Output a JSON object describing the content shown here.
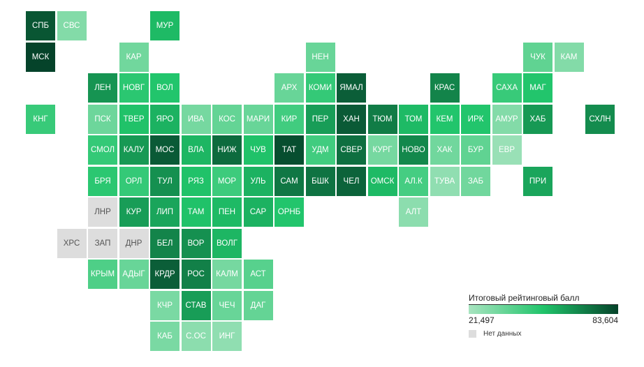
{
  "map": {
    "color_scale": {
      "min_color": "#a8e4c0",
      "max_color": "#05432a",
      "nodata_color": "#dddddd"
    },
    "regions": [
      {
        "label": "СПБ",
        "row": 0,
        "col": 0,
        "score": 79
      },
      {
        "label": "СВС",
        "row": 0,
        "col": 1,
        "score": 30
      },
      {
        "label": "МУР",
        "row": 0,
        "col": 4,
        "score": 55
      },
      {
        "label": "МСК",
        "row": 1,
        "col": 0,
        "score": 83.6
      },
      {
        "label": "КАР",
        "row": 1,
        "col": 3,
        "score": 34
      },
      {
        "label": "НЕН",
        "row": 1,
        "col": 9,
        "score": 36
      },
      {
        "label": "ЧУК",
        "row": 1,
        "col": 16,
        "score": 38
      },
      {
        "label": "КАМ",
        "row": 1,
        "col": 17,
        "score": 30
      },
      {
        "label": "ЛЕН",
        "row": 2,
        "col": 2,
        "score": 64
      },
      {
        "label": "НОВГ",
        "row": 2,
        "col": 3,
        "score": 50
      },
      {
        "label": "ВОЛ",
        "row": 2,
        "col": 4,
        "score": 52
      },
      {
        "label": "АРХ",
        "row": 2,
        "col": 8,
        "score": 36
      },
      {
        "label": "КОМИ",
        "row": 2,
        "col": 9,
        "score": 48
      },
      {
        "label": "ЯМАЛ",
        "row": 2,
        "col": 10,
        "score": 77
      },
      {
        "label": "КРАС",
        "row": 2,
        "col": 13,
        "score": 68
      },
      {
        "label": "САХА",
        "row": 2,
        "col": 15,
        "score": 47
      },
      {
        "label": "МАГ",
        "row": 2,
        "col": 16,
        "score": 52
      },
      {
        "label": "КНГ",
        "row": 3,
        "col": 0,
        "score": 47
      },
      {
        "label": "ПСК",
        "row": 3,
        "col": 2,
        "score": 35
      },
      {
        "label": "ТВЕР",
        "row": 3,
        "col": 3,
        "score": 53
      },
      {
        "label": "ЯРО",
        "row": 3,
        "col": 4,
        "score": 57
      },
      {
        "label": "ИВА",
        "row": 3,
        "col": 5,
        "score": 33
      },
      {
        "label": "КОС",
        "row": 3,
        "col": 6,
        "score": 37
      },
      {
        "label": "МАРИ",
        "row": 3,
        "col": 7,
        "score": 36
      },
      {
        "label": "КИР",
        "row": 3,
        "col": 8,
        "score": 45
      },
      {
        "label": "ПЕР",
        "row": 3,
        "col": 9,
        "score": 62
      },
      {
        "label": "ХАН",
        "row": 3,
        "col": 10,
        "score": 78
      },
      {
        "label": "ТЮМ",
        "row": 3,
        "col": 11,
        "score": 70
      },
      {
        "label": "ТОМ",
        "row": 3,
        "col": 12,
        "score": 55
      },
      {
        "label": "КЕМ",
        "row": 3,
        "col": 13,
        "score": 52
      },
      {
        "label": "ИРК",
        "row": 3,
        "col": 14,
        "score": 52
      },
      {
        "label": "АМУР",
        "row": 3,
        "col": 15,
        "score": 30
      },
      {
        "label": "ХАБ",
        "row": 3,
        "col": 16,
        "score": 63
      },
      {
        "label": "СХЛН",
        "row": 3,
        "col": 18,
        "score": 66
      },
      {
        "label": "СМОЛ",
        "row": 4,
        "col": 2,
        "score": 48
      },
      {
        "label": "КАЛУ",
        "row": 4,
        "col": 3,
        "score": 63
      },
      {
        "label": "МОС",
        "row": 4,
        "col": 4,
        "score": 78
      },
      {
        "label": "ВЛА",
        "row": 4,
        "col": 5,
        "score": 56
      },
      {
        "label": "НИЖ",
        "row": 4,
        "col": 6,
        "score": 74
      },
      {
        "label": "ЧУВ",
        "row": 4,
        "col": 7,
        "score": 53
      },
      {
        "label": "ТАТ",
        "row": 4,
        "col": 8,
        "score": 81
      },
      {
        "label": "УДМ",
        "row": 4,
        "col": 9,
        "score": 45
      },
      {
        "label": "СВЕР",
        "row": 4,
        "col": 10,
        "score": 73
      },
      {
        "label": "КУРГ",
        "row": 4,
        "col": 11,
        "score": 33
      },
      {
        "label": "НОВО",
        "row": 4,
        "col": 12,
        "score": 67
      },
      {
        "label": "ХАК",
        "row": 4,
        "col": 13,
        "score": 34
      },
      {
        "label": "БУР",
        "row": 4,
        "col": 14,
        "score": 38
      },
      {
        "label": "ЕВР",
        "row": 4,
        "col": 15,
        "score": 25
      },
      {
        "label": "БРЯ",
        "row": 5,
        "col": 2,
        "score": 50
      },
      {
        "label": "ОРЛ",
        "row": 5,
        "col": 3,
        "score": 48
      },
      {
        "label": "ТУЛ",
        "row": 5,
        "col": 4,
        "score": 65
      },
      {
        "label": "РЯЗ",
        "row": 5,
        "col": 5,
        "score": 53
      },
      {
        "label": "МОР",
        "row": 5,
        "col": 6,
        "score": 46
      },
      {
        "label": "УЛЬ",
        "row": 5,
        "col": 7,
        "score": 57
      },
      {
        "label": "САМ",
        "row": 5,
        "col": 8,
        "score": 71
      },
      {
        "label": "БШК",
        "row": 5,
        "col": 9,
        "score": 72
      },
      {
        "label": "ЧЕЛ",
        "row": 5,
        "col": 10,
        "score": 76
      },
      {
        "label": "ОМСК",
        "row": 5,
        "col": 11,
        "score": 55
      },
      {
        "label": "АЛ.К",
        "row": 5,
        "col": 12,
        "score": 44
      },
      {
        "label": "ТУВА",
        "row": 5,
        "col": 13,
        "score": 27
      },
      {
        "label": "ЗАБ",
        "row": 5,
        "col": 14,
        "score": 34
      },
      {
        "label": "ПРИ",
        "row": 5,
        "col": 16,
        "score": 60
      },
      {
        "label": "ЛНР",
        "row": 6,
        "col": 2,
        "score": null
      },
      {
        "label": "КУР",
        "row": 6,
        "col": 3,
        "score": 62
      },
      {
        "label": "ЛИП",
        "row": 6,
        "col": 4,
        "score": 60
      },
      {
        "label": "ТАМ",
        "row": 6,
        "col": 5,
        "score": 53
      },
      {
        "label": "ПЕН",
        "row": 6,
        "col": 6,
        "score": 55
      },
      {
        "label": "САР",
        "row": 6,
        "col": 7,
        "score": 57
      },
      {
        "label": "ОРНБ",
        "row": 6,
        "col": 8,
        "score": 52
      },
      {
        "label": "АЛТ",
        "row": 6,
        "col": 12,
        "score": 28
      },
      {
        "label": "ХРС",
        "row": 7,
        "col": 1,
        "score": null
      },
      {
        "label": "ЗАП",
        "row": 7,
        "col": 2,
        "score": null
      },
      {
        "label": "ДНР",
        "row": 7,
        "col": 3,
        "score": null
      },
      {
        "label": "БЕЛ",
        "row": 7,
        "col": 4,
        "score": 68
      },
      {
        "label": "ВОР",
        "row": 7,
        "col": 5,
        "score": 65
      },
      {
        "label": "ВОЛГ",
        "row": 7,
        "col": 6,
        "score": 56
      },
      {
        "label": "КРЫМ",
        "row": 8,
        "col": 2,
        "score": 42
      },
      {
        "label": "АДЫГ",
        "row": 8,
        "col": 3,
        "score": 36
      },
      {
        "label": "КРДР",
        "row": 8,
        "col": 4,
        "score": 77
      },
      {
        "label": "РОС",
        "row": 8,
        "col": 5,
        "score": 69
      },
      {
        "label": "КАЛМ",
        "row": 8,
        "col": 6,
        "score": 33
      },
      {
        "label": "АСТ",
        "row": 8,
        "col": 7,
        "score": 40
      },
      {
        "label": "КЧР",
        "row": 9,
        "col": 4,
        "score": 32
      },
      {
        "label": "СТАВ",
        "row": 9,
        "col": 5,
        "score": 62
      },
      {
        "label": "ЧЕЧ",
        "row": 9,
        "col": 6,
        "score": 36
      },
      {
        "label": "ДАГ",
        "row": 9,
        "col": 7,
        "score": 37
      },
      {
        "label": "КАБ",
        "row": 10,
        "col": 4,
        "score": 32
      },
      {
        "label": "С.ОС",
        "row": 10,
        "col": 5,
        "score": 28
      },
      {
        "label": "ИНГ",
        "row": 10,
        "col": 6,
        "score": 27
      }
    ]
  },
  "legend": {
    "title": "Итоговый рейтинговый балл",
    "min_label": "21,497",
    "max_label": "83,604",
    "min_value": 21.497,
    "max_value": 83.604,
    "nodata_label": "Нет данных"
  }
}
